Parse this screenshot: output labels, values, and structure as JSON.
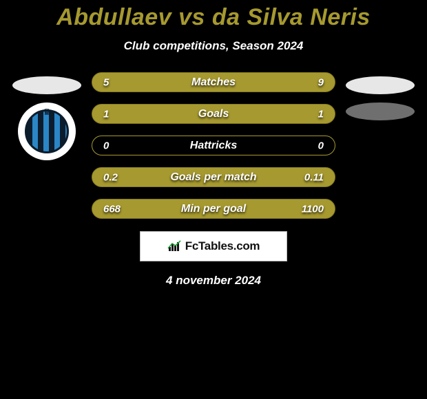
{
  "title": {
    "text": "Abdullaev vs da Silva Neris",
    "color": "#a6992f",
    "fontsize": 34
  },
  "subtitle": {
    "text": "Club competitions, Season 2024",
    "color": "#ffffff",
    "fontsize": 17
  },
  "date": {
    "text": "4 november 2024",
    "color": "#ffffff",
    "fontsize": 17
  },
  "logo": {
    "text": "FcTables.com",
    "icon_name": "bar-chart-icon"
  },
  "left_side": {
    "club_badge": {
      "outer_bg": "#ffffff",
      "stripe_dark": "#0b1c2c",
      "stripe_light": "#2b86c6"
    }
  },
  "colors": {
    "bar_fill": "#a6992f",
    "bar_border_full": "#857a23",
    "bar_border_empty": "#a6992f",
    "background": "#000000",
    "text": "#ffffff",
    "oval_light": "#e7e7e7",
    "oval_dark": "#6f6f6f"
  },
  "stats": [
    {
      "label": "Matches",
      "left_value": "5",
      "right_value": "9",
      "left_raw": 5,
      "right_raw": 9,
      "left_width_pct": 35.7,
      "right_width_pct": 64.3,
      "highlight": "right"
    },
    {
      "label": "Goals",
      "left_value": "1",
      "right_value": "1",
      "left_raw": 1,
      "right_raw": 1,
      "left_width_pct": 50,
      "right_width_pct": 50,
      "highlight": "both"
    },
    {
      "label": "Hattricks",
      "left_value": "0",
      "right_value": "0",
      "left_raw": 0,
      "right_raw": 0,
      "left_width_pct": 0,
      "right_width_pct": 0,
      "highlight": "none"
    },
    {
      "label": "Goals per match",
      "left_value": "0.2",
      "right_value": "0.11",
      "left_raw": 0.2,
      "right_raw": 0.11,
      "left_width_pct": 64.5,
      "right_width_pct": 35.5,
      "highlight": "left"
    },
    {
      "label": "Min per goal",
      "left_value": "668",
      "right_value": "1100",
      "left_raw": 668,
      "right_raw": 1100,
      "left_width_pct": 37.8,
      "right_width_pct": 62.2,
      "highlight": "right"
    }
  ]
}
